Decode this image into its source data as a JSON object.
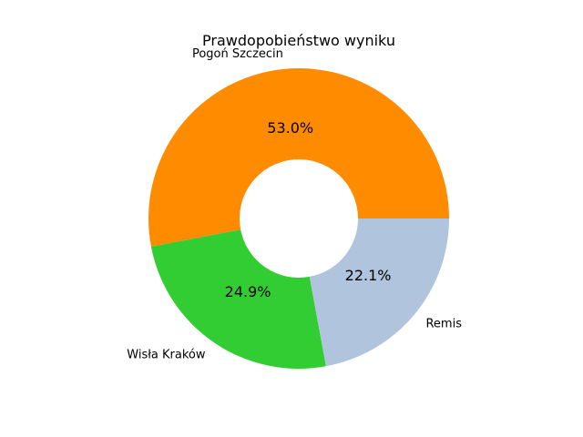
{
  "chart_data": {
    "type": "pie",
    "variant": "donut",
    "title": "Prawdopobieństwo wyniku",
    "categories": [
      "Pogoń Szczecin",
      "Wisła Kraków",
      "Remis"
    ],
    "values": [
      53.0,
      24.9,
      22.1
    ],
    "value_labels": [
      "53.0%",
      "24.9%",
      "22.1%"
    ],
    "colors": [
      "#ff8c00",
      "#32cd32",
      "#b0c4de"
    ]
  }
}
